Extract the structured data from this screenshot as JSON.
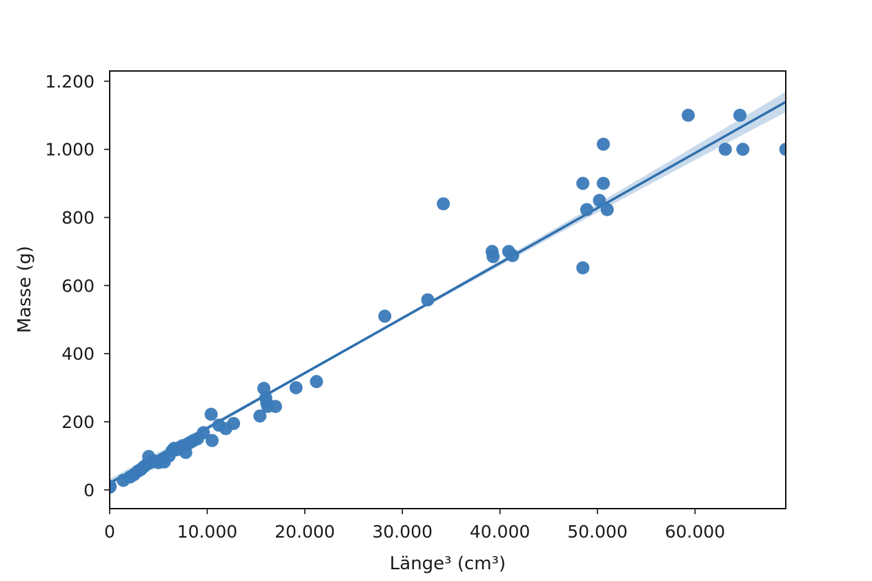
{
  "chart_data": {
    "type": "scatter",
    "title": "",
    "xlabel": "Länge³ (cm³)",
    "ylabel": "Masse (g)",
    "xlim": [
      0,
      69300
    ],
    "ylim": [
      -55,
      1230
    ],
    "x_ticks": [
      0,
      10000,
      20000,
      30000,
      40000,
      50000,
      60000
    ],
    "x_tick_labels": [
      "0",
      "10.000",
      "20.000",
      "30.000",
      "40.000",
      "50.000",
      "60.000"
    ],
    "y_ticks": [
      0,
      200,
      400,
      600,
      800,
      1000,
      1200
    ],
    "y_tick_labels": [
      "0",
      "200",
      "400",
      "600",
      "800",
      "1.000",
      "1.200"
    ],
    "grid": false,
    "marker_color": "#3a7ab8",
    "line_color": "#2f6fac",
    "band_color": "#b7cde4",
    "regression": {
      "intercept": 20,
      "slope": 0.01615,
      "ci_start_halfwidth": 12,
      "ci_mid_halfwidth": 6,
      "ci_end_halfwidth": 30
    },
    "points": [
      {
        "x": 0,
        "y": 8
      },
      {
        "x": 50,
        "y": 10
      },
      {
        "x": 1400,
        "y": 28
      },
      {
        "x": 2100,
        "y": 38
      },
      {
        "x": 2500,
        "y": 45
      },
      {
        "x": 2900,
        "y": 55
      },
      {
        "x": 3200,
        "y": 60
      },
      {
        "x": 3500,
        "y": 68
      },
      {
        "x": 3800,
        "y": 75
      },
      {
        "x": 4000,
        "y": 98
      },
      {
        "x": 4200,
        "y": 80
      },
      {
        "x": 4600,
        "y": 85
      },
      {
        "x": 5000,
        "y": 80
      },
      {
        "x": 5400,
        "y": 90
      },
      {
        "x": 5600,
        "y": 82
      },
      {
        "x": 6100,
        "y": 100
      },
      {
        "x": 6400,
        "y": 115
      },
      {
        "x": 6600,
        "y": 122
      },
      {
        "x": 6900,
        "y": 118
      },
      {
        "x": 7200,
        "y": 125
      },
      {
        "x": 7500,
        "y": 130
      },
      {
        "x": 7800,
        "y": 110
      },
      {
        "x": 8000,
        "y": 135
      },
      {
        "x": 8300,
        "y": 140
      },
      {
        "x": 8600,
        "y": 145
      },
      {
        "x": 9000,
        "y": 150
      },
      {
        "x": 9600,
        "y": 168
      },
      {
        "x": 10400,
        "y": 222
      },
      {
        "x": 10500,
        "y": 145
      },
      {
        "x": 11200,
        "y": 190
      },
      {
        "x": 11900,
        "y": 180
      },
      {
        "x": 12700,
        "y": 195
      },
      {
        "x": 15400,
        "y": 217
      },
      {
        "x": 15800,
        "y": 298
      },
      {
        "x": 16000,
        "y": 270
      },
      {
        "x": 16100,
        "y": 255
      },
      {
        "x": 16200,
        "y": 245
      },
      {
        "x": 17000,
        "y": 245
      },
      {
        "x": 19100,
        "y": 300
      },
      {
        "x": 21200,
        "y": 318
      },
      {
        "x": 28200,
        "y": 510
      },
      {
        "x": 32600,
        "y": 558
      },
      {
        "x": 34200,
        "y": 840
      },
      {
        "x": 39200,
        "y": 700
      },
      {
        "x": 39300,
        "y": 685
      },
      {
        "x": 40900,
        "y": 700
      },
      {
        "x": 41300,
        "y": 688
      },
      {
        "x": 48500,
        "y": 900
      },
      {
        "x": 48500,
        "y": 652
      },
      {
        "x": 48900,
        "y": 823
      },
      {
        "x": 50200,
        "y": 850
      },
      {
        "x": 50600,
        "y": 1015
      },
      {
        "x": 50600,
        "y": 900
      },
      {
        "x": 51000,
        "y": 823
      },
      {
        "x": 59300,
        "y": 1100
      },
      {
        "x": 63100,
        "y": 1000
      },
      {
        "x": 64600,
        "y": 1100
      },
      {
        "x": 64900,
        "y": 1000
      },
      {
        "x": 69300,
        "y": 1000
      }
    ]
  }
}
